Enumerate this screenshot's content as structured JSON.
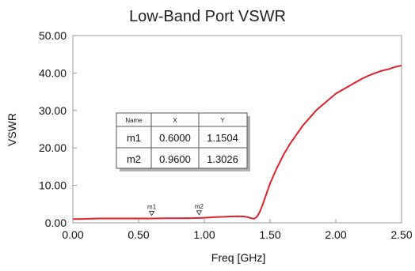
{
  "chart_data": {
    "type": "line",
    "title": "Low-Band Port VSWR",
    "xlabel": "Freq [GHz]",
    "ylabel": "VSWR",
    "xlim": [
      0,
      2.5
    ],
    "ylim": [
      0,
      50
    ],
    "x_ticks": [
      "0.00",
      "0.50",
      "1.00",
      "1.50",
      "2.00",
      "2.50"
    ],
    "y_ticks": [
      "0.00",
      "10.00",
      "20.00",
      "30.00",
      "40.00",
      "50.00"
    ],
    "grid": false,
    "line_color": "#e0202c",
    "series": [
      {
        "x": [
          0.0,
          0.05,
          0.1,
          0.15,
          0.2,
          0.3,
          0.4,
          0.5,
          0.6,
          0.7,
          0.8,
          0.9,
          0.96,
          1.0,
          1.05,
          1.1,
          1.15,
          1.2,
          1.25,
          1.3,
          1.33,
          1.36,
          1.38,
          1.4,
          1.42,
          1.44,
          1.46,
          1.48,
          1.5,
          1.55,
          1.6,
          1.65,
          1.7,
          1.75,
          1.8,
          1.85,
          1.9,
          1.95,
          2.0,
          2.05,
          2.1,
          2.15,
          2.2,
          2.25,
          2.3,
          2.35,
          2.4,
          2.45,
          2.5
        ],
        "y": [
          1.0,
          1.0,
          1.05,
          1.1,
          1.15,
          1.15,
          1.15,
          1.15,
          1.15,
          1.2,
          1.2,
          1.25,
          1.3,
          1.35,
          1.45,
          1.55,
          1.6,
          1.7,
          1.75,
          1.7,
          1.5,
          1.2,
          1.1,
          1.6,
          2.8,
          4.5,
          6.5,
          8.5,
          10.5,
          14.5,
          18.0,
          21.0,
          23.5,
          26.0,
          28.0,
          30.0,
          31.5,
          33.0,
          34.5,
          35.5,
          36.5,
          37.5,
          38.5,
          39.3,
          40.0,
          40.6,
          41.0,
          41.6,
          42.0
        ]
      }
    ],
    "markers": [
      {
        "name": "m1",
        "x": 0.6,
        "y": 1.1504
      },
      {
        "name": "m2",
        "x": 0.96,
        "y": 1.3026
      }
    ],
    "marker_table": {
      "headers": [
        "Name",
        "X",
        "Y"
      ],
      "rows": [
        [
          "m1",
          "0.6000",
          "1.1504"
        ],
        [
          "m2",
          "0.9600",
          "1.3026"
        ]
      ]
    }
  }
}
